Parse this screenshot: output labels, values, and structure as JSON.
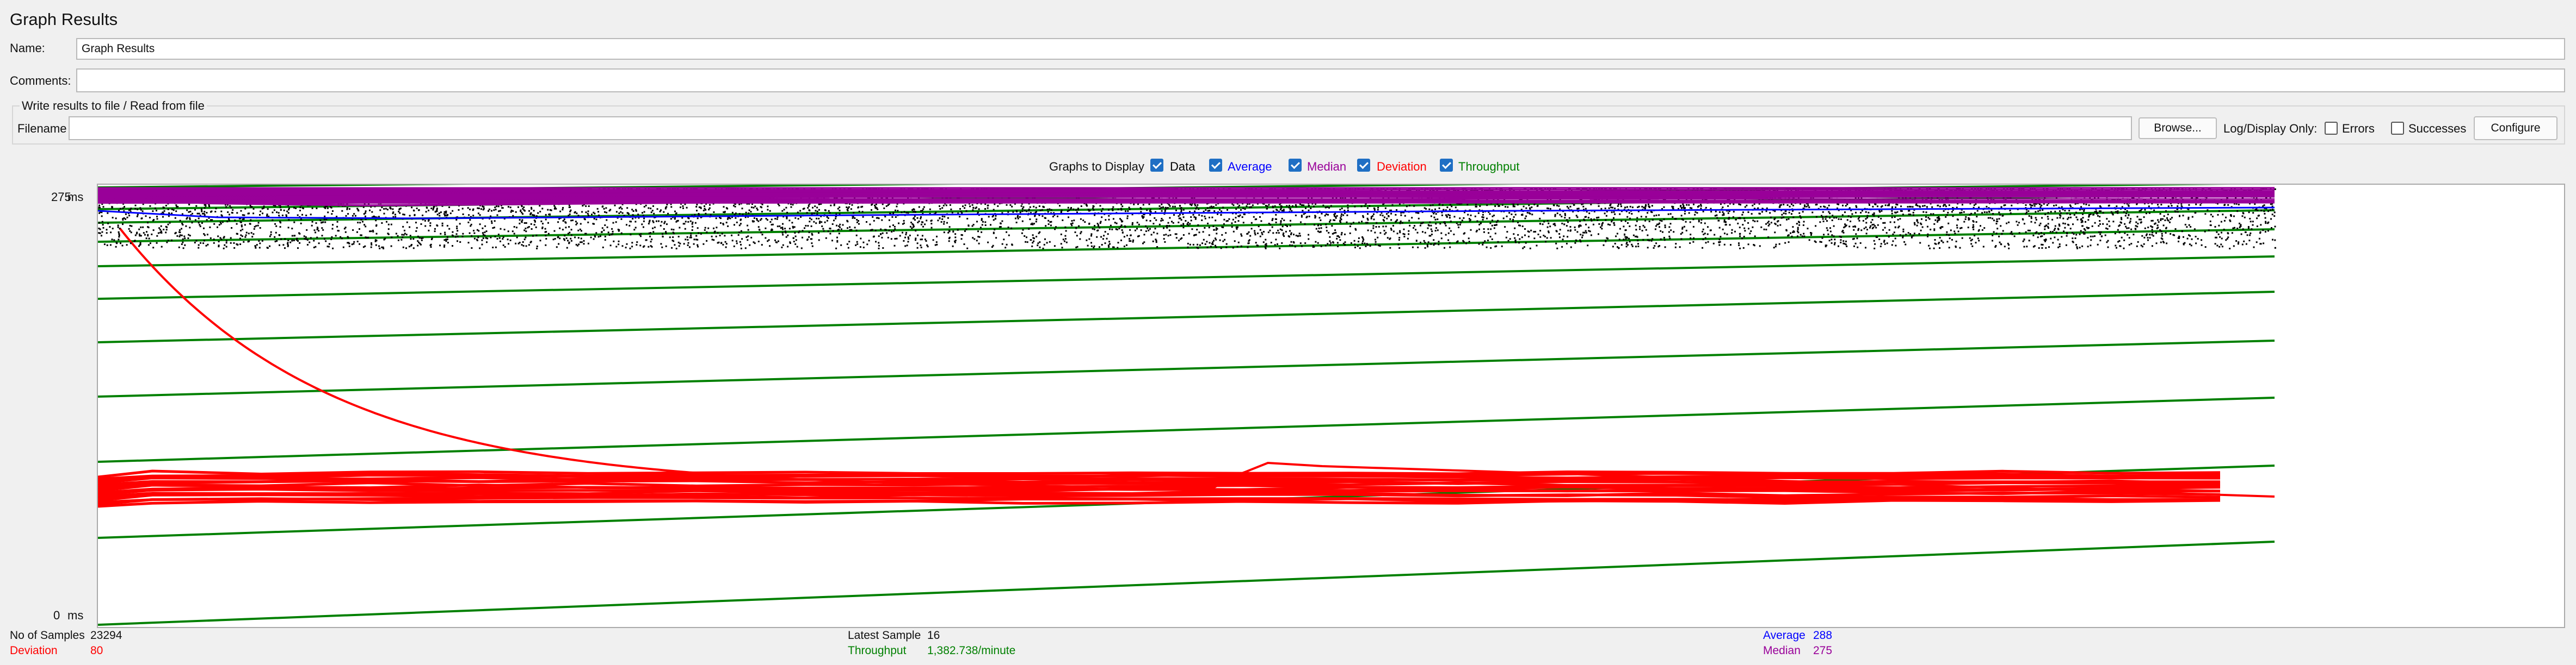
{
  "window": {
    "title": "Graph Results"
  },
  "form": {
    "name_label": "Name:",
    "name_value": "Graph Results",
    "comments_label": "Comments:",
    "comments_value": "",
    "file_group_title": "Write results to file / Read from file",
    "filename_label": "Filename",
    "filename_value": "",
    "browse_label": "Browse...",
    "log_display_label": "Log/Display Only:",
    "errors_label": "Errors",
    "errors_checked": false,
    "successes_label": "Successes",
    "successes_checked": false,
    "configure_label": "Configure"
  },
  "graphs_to_display": {
    "label": "Graphs to Display",
    "items": [
      {
        "label": "Data",
        "checked": true,
        "color": "#000000"
      },
      {
        "label": "Average",
        "checked": true,
        "color": "#0000ff"
      },
      {
        "label": "Median",
        "checked": true,
        "color": "#990099"
      },
      {
        "label": "Deviation",
        "checked": true,
        "color": "#ff0000"
      },
      {
        "label": "Throughput",
        "checked": true,
        "color": "#008000"
      }
    ]
  },
  "axis": {
    "y_max_label": "275",
    "y_min_label": "0",
    "unit": "ms"
  },
  "stats": {
    "samples_label": "No of Samples",
    "samples_value": "23294",
    "deviation_label": "Deviation",
    "deviation_value": "80",
    "latest_label": "Latest Sample",
    "latest_value": "16",
    "throughput_label": "Throughput",
    "throughput_value": "1,382.738/minute",
    "average_label": "Average",
    "average_value": "288",
    "median_label": "Median",
    "median_value": "275"
  },
  "chart_data": {
    "type": "line",
    "ylim": [
      0,
      275
    ],
    "yunit": "ms",
    "series": [
      {
        "name": "Data",
        "color": "#000000"
      },
      {
        "name": "Average",
        "color": "#0000ff"
      },
      {
        "name": "Median",
        "color": "#990099"
      },
      {
        "name": "Deviation",
        "color": "#ff0000"
      },
      {
        "name": "Throughput",
        "color": "#008000"
      }
    ]
  }
}
